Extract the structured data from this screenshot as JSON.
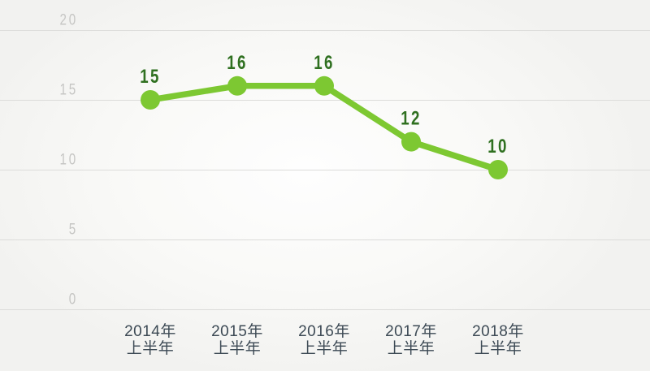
{
  "chart_data": {
    "type": "line",
    "title": "",
    "categories": [
      {
        "line1": "2014年",
        "line2": "上半年"
      },
      {
        "line1": "2015年",
        "line2": "上半年"
      },
      {
        "line1": "2016年",
        "line2": "上半年"
      },
      {
        "line1": "2017年",
        "line2": "上半年"
      },
      {
        "line1": "2018年",
        "line2": "上半年"
      }
    ],
    "values": [
      15,
      16,
      16,
      12,
      10
    ],
    "value_labels": [
      "15",
      "16",
      "16",
      "12",
      "10"
    ],
    "xlabel": "",
    "ylabel": "",
    "ylim": [
      0,
      20
    ],
    "yticks": [
      0,
      5,
      10,
      15,
      20
    ],
    "grid": "horizontal",
    "legend": "none"
  },
  "colors": {
    "line": "#7dc832",
    "point_fill": "#7dc832",
    "value_label": "#2f7020",
    "ytick_label": "#c6c6c4",
    "gridline": "#dcdcda",
    "category_label": "#3d4a55",
    "background_center": "#fefefe",
    "background_edge": "#f2f2f0"
  }
}
